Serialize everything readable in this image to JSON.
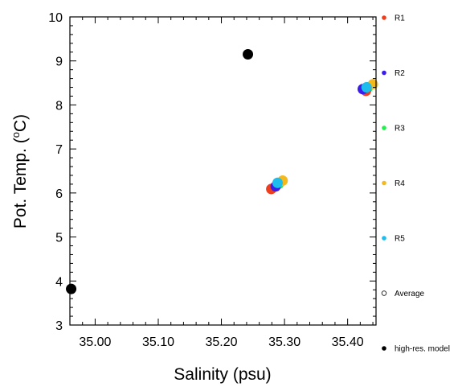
{
  "chart_data": {
    "type": "scatter",
    "title": "",
    "xlabel": "Salinity (psu)",
    "ylabel_main": "Pot. Temp. (",
    "ylabel_sup": "o",
    "ylabel_unit": "C)",
    "xlim": [
      34.96,
      35.445
    ],
    "ylim": [
      3,
      10
    ],
    "x_ticks": [
      35.0,
      35.1,
      35.2,
      35.3,
      35.4
    ],
    "x_tick_labels": [
      "35.00",
      "35.10",
      "35.20",
      "35.30",
      "35.40"
    ],
    "y_ticks": [
      3,
      4,
      5,
      6,
      7,
      8,
      9,
      10
    ],
    "y_tick_labels": [
      "3",
      "4",
      "5",
      "6",
      "7",
      "8",
      "9",
      "10"
    ],
    "grid": false,
    "legend_position": "right",
    "series": [
      {
        "name": "R1",
        "color": "#ef3e1d",
        "points": [
          [
            35.279,
            6.09
          ],
          [
            35.429,
            8.32
          ]
        ]
      },
      {
        "name": "R2",
        "color": "#3a1de8",
        "points": [
          [
            35.286,
            6.15
          ],
          [
            35.424,
            8.36
          ]
        ]
      },
      {
        "name": "R3",
        "color": "#22ee4c",
        "points": [
          [
            35.291,
            6.21
          ],
          [
            35.432,
            8.4
          ]
        ]
      },
      {
        "name": "R4",
        "color": "#f4b91c",
        "points": [
          [
            35.297,
            6.28
          ],
          [
            35.44,
            8.47
          ]
        ]
      },
      {
        "name": "R5",
        "color": "#1dbdee",
        "points": [
          [
            35.289,
            6.23
          ],
          [
            35.43,
            8.4
          ]
        ]
      },
      {
        "name": "Average",
        "color": "#000000",
        "hollow": true,
        "points": []
      },
      {
        "name": "high-res. model",
        "color": "#000000",
        "points": [
          [
            34.962,
            3.82
          ],
          [
            35.242,
            9.15
          ]
        ]
      }
    ]
  }
}
